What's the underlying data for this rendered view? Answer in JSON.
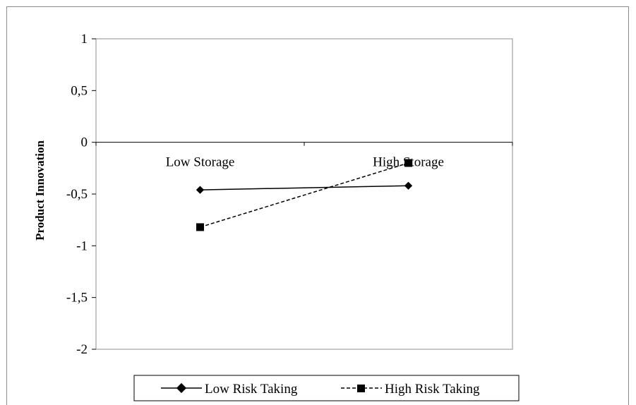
{
  "chart_data": {
    "type": "line",
    "categories": [
      "Low Storage",
      "High Storage"
    ],
    "ylabel": "Product Innovation",
    "ylim": [
      -2,
      1
    ],
    "yticks": [
      1,
      0.5,
      0,
      -0.5,
      -1,
      -1.5,
      -2
    ],
    "ytick_labels": [
      "1",
      "0,5",
      "0",
      "-0,5",
      "-1",
      "-1,5",
      "-2"
    ],
    "grid": false,
    "legend_position": "bottom",
    "series": [
      {
        "name": "Low Risk Taking",
        "values": [
          -0.46,
          -0.42
        ],
        "line": "solid",
        "marker": "diamond",
        "color": "#000000"
      },
      {
        "name": "High Risk Taking",
        "values": [
          -0.82,
          -0.2
        ],
        "line": "dashed",
        "marker": "square",
        "color": "#000000"
      }
    ]
  }
}
